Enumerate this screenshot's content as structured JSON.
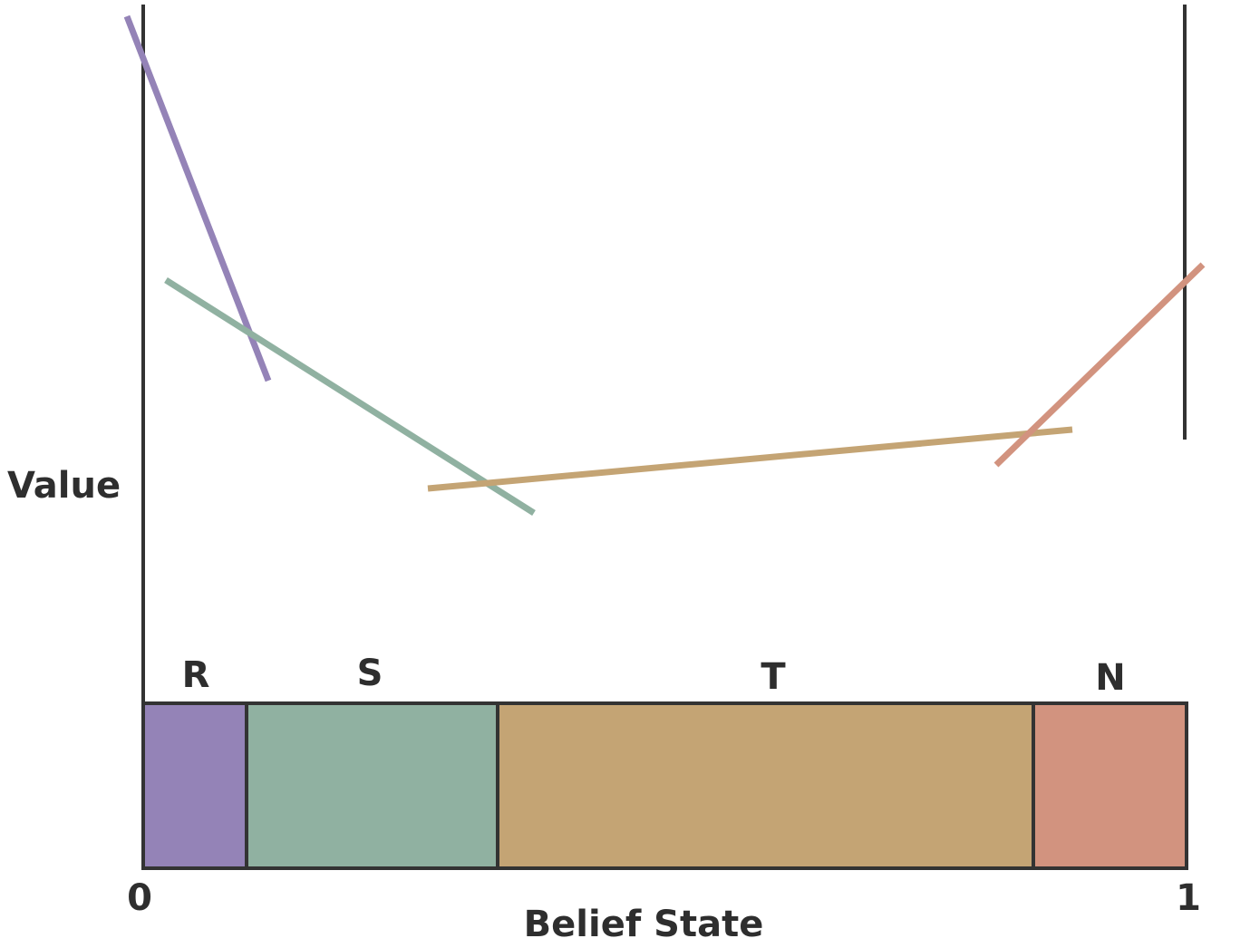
{
  "y_axis_label": "Value",
  "x_axis_label": "Belief State",
  "x_min_label": "0",
  "x_max_label": "1",
  "regions": [
    {
      "label": "R",
      "color": "#9483b7"
    },
    {
      "label": "S",
      "color": "#90b1a1"
    },
    {
      "label": "T",
      "color": "#c4a474"
    },
    {
      "label": "N",
      "color": "#d2937f"
    }
  ]
}
